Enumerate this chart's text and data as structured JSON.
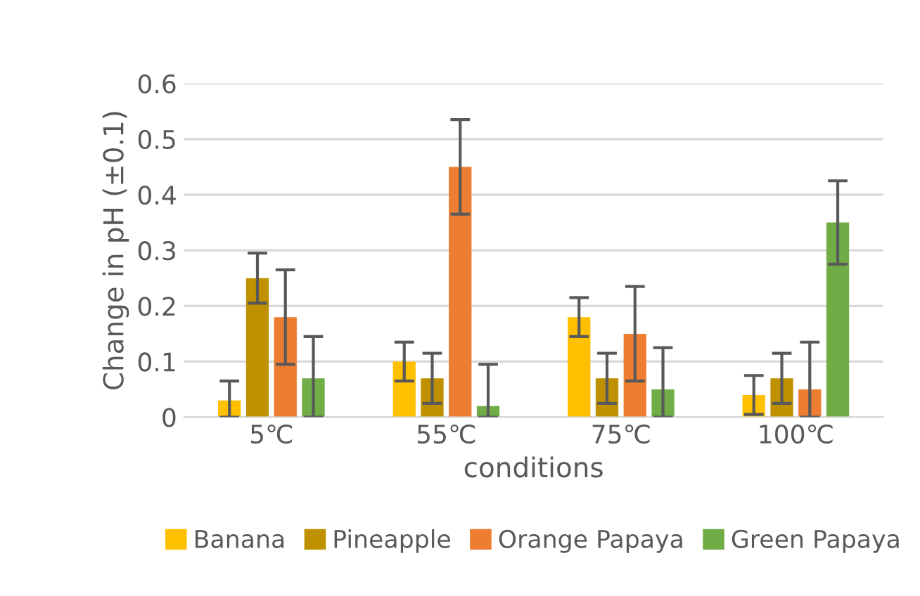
{
  "chart_data": {
    "type": "bar",
    "xlabel": "conditions",
    "ylabel": "Change in pH (±0.1)",
    "categories": [
      "5℃",
      "55℃",
      "75℃",
      "100℃"
    ],
    "series": [
      {
        "name": "Banana",
        "color": "#ffc000",
        "values": [
          0.03,
          0.1,
          0.18,
          0.04
        ],
        "errors": [
          [
            0,
            0.065
          ],
          0.035,
          0.035,
          0.035
        ]
      },
      {
        "name": "Pineapple",
        "color": "#bf9000",
        "values": [
          0.25,
          0.07,
          0.07,
          0.07
        ],
        "errors": [
          0.045,
          0.045,
          0.045,
          0.045
        ]
      },
      {
        "name": "Orange Papaya",
        "color": "#ed7d31",
        "values": [
          0.18,
          0.45,
          0.15,
          0.05
        ],
        "errors": [
          0.085,
          0.085,
          0.085,
          [
            0,
            0.135
          ]
        ]
      },
      {
        "name": "Green Papaya",
        "color": "#70ad47",
        "values": [
          0.07,
          0.02,
          0.05,
          0.35
        ],
        "errors": [
          [
            0,
            0.145
          ],
          [
            0,
            0.095
          ],
          [
            0,
            0.125
          ],
          0.075
        ]
      }
    ],
    "ylim": [
      0,
      0.6
    ],
    "yticks": [
      0,
      0.1,
      0.2,
      0.3,
      0.4,
      0.5,
      0.6
    ],
    "grid": "y",
    "legend": "bottom"
  }
}
